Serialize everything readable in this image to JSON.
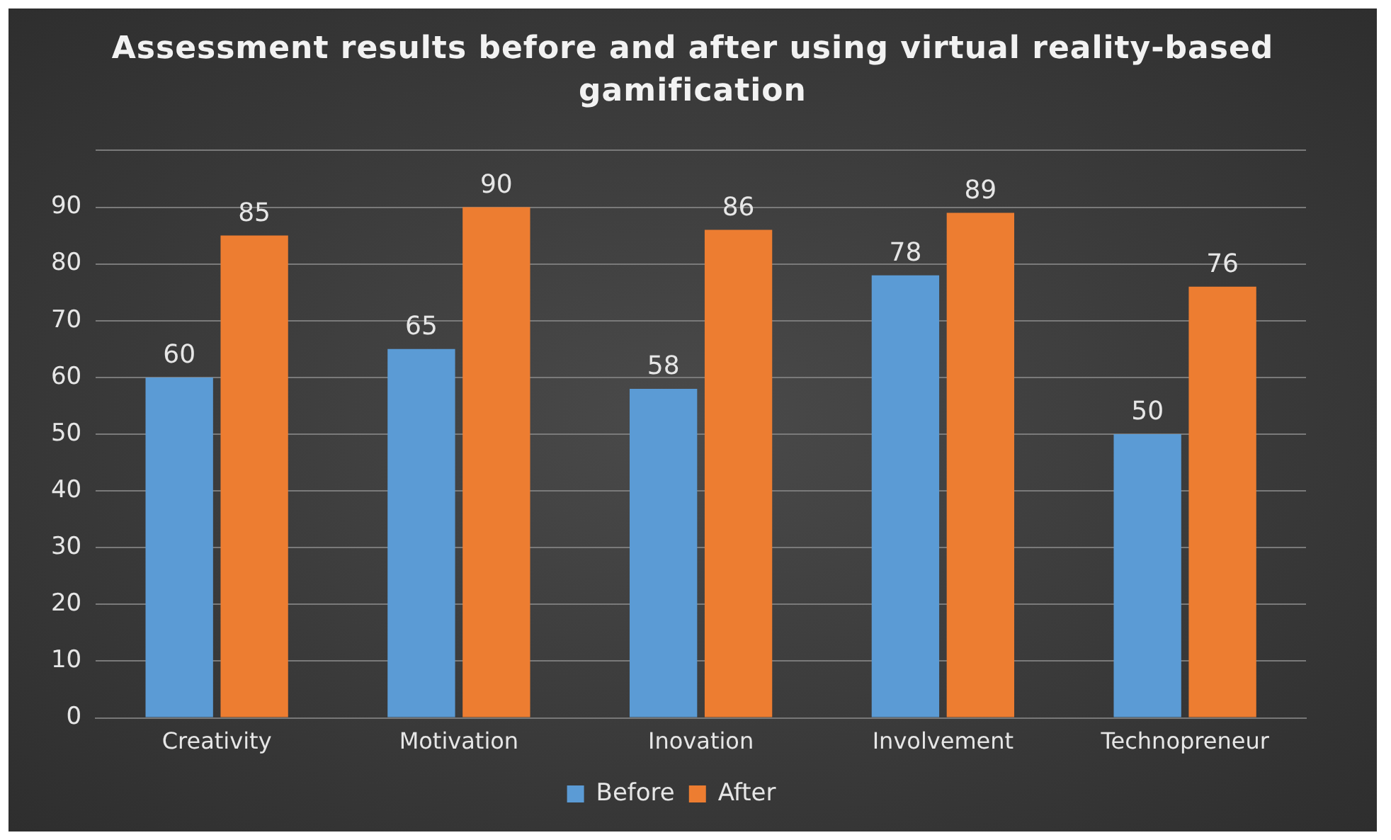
{
  "chart_data": {
    "type": "bar",
    "title": "Assessment results before and after using virtual reality-based gamification",
    "categories": [
      "Creativity",
      "Motivation",
      "Inovation",
      "Involvement",
      "Technopreneur"
    ],
    "series": [
      {
        "name": "Before",
        "color": "#5b9bd5",
        "values": [
          60,
          65,
          58,
          78,
          50
        ]
      },
      {
        "name": "After",
        "color": "#ed7d31",
        "values": [
          85,
          90,
          86,
          89,
          76
        ]
      }
    ],
    "ylim": [
      0,
      100
    ],
    "yticks": [
      0,
      10,
      20,
      30,
      40,
      50,
      60,
      70,
      80,
      90,
      {
        "value": 100,
        "label": null
      }
    ],
    "grid": "y",
    "legend": "bottom",
    "data_labels": true
  }
}
